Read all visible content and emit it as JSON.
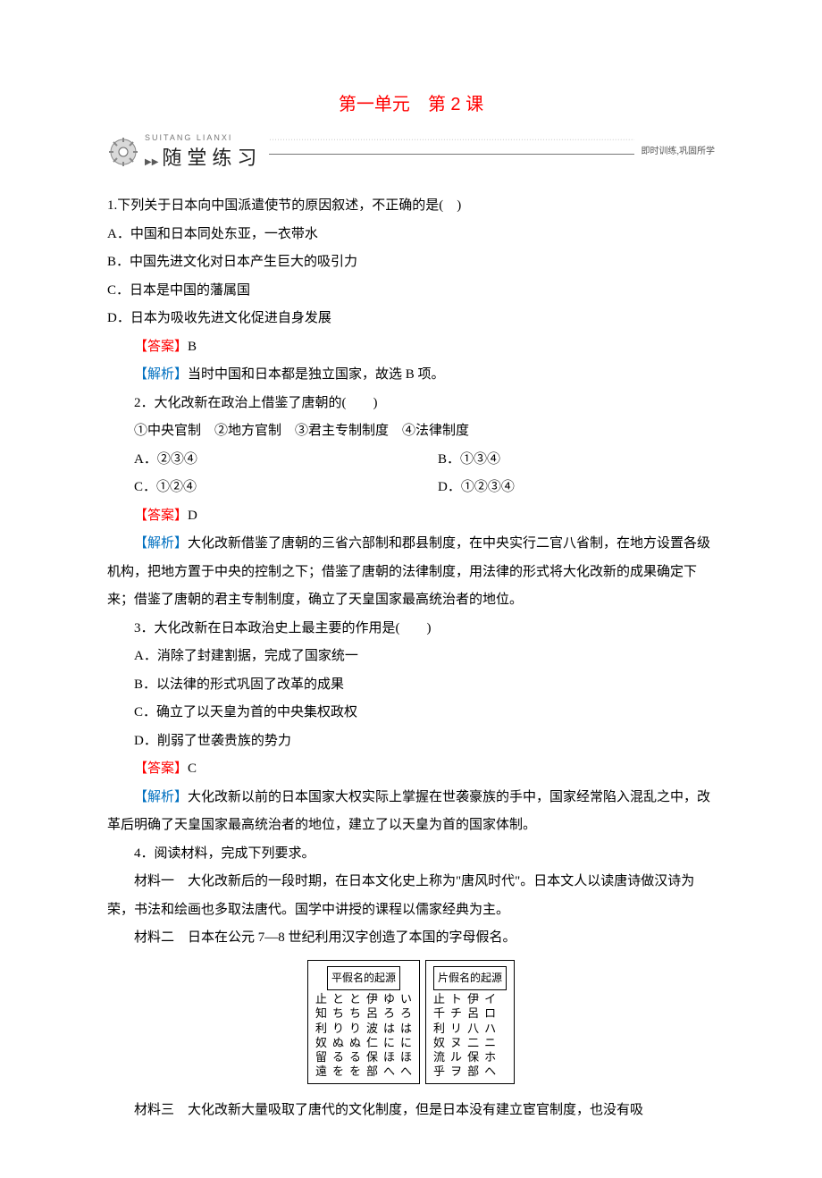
{
  "title": "第一单元　第 2 课",
  "banner": {
    "pinyin": "SUITANG LIANXI",
    "cn": "随堂练习",
    "sub": "即时训练,巩固所学"
  },
  "q1": {
    "stem": "1.下列关于日本向中国派遣使节的原因叙述，不正确的是(　)",
    "a": "A．中国和日本同处东亚，一衣带水",
    "b": "B．中国先进文化对日本产生巨大的吸引力",
    "c": "C．日本是中国的藩属国",
    "d": "D．日本为吸收先进文化促进自身发展",
    "ans_label": "【答案】",
    "ans": "B",
    "ana_label": "【解析】",
    "ana": "当时中国和日本都是独立国家，故选 B 项。"
  },
  "q2": {
    "stem": "2．大化改新在政治上借鉴了唐朝的(　　)",
    "items": "①中央官制　②地方官制　③君主专制制度　④法律制度",
    "a": "A．②③④",
    "b": "B．①③④",
    "c": "C．①②④",
    "d": "D．①②③④",
    "ans_label": "【答案】",
    "ans": "D",
    "ana_label": "【解析】",
    "ana": "大化改新借鉴了唐朝的三省六部制和郡县制度，在中央实行二官八省制，在地方设置各级机构，把地方置于中央的控制之下；借鉴了唐朝的法律制度，用法律的形式将大化改新的成果确定下来；借鉴了唐朝的君主专制制度，确立了天皇国家最高统治者的地位。"
  },
  "q3": {
    "stem": "3．大化改新在日本政治史上最主要的作用是(　　)",
    "a": "A．消除了封建割据，完成了国家统一",
    "b": "B．以法律的形式巩固了改革的成果",
    "c": "C．确立了以天皇为首的中央集权政权",
    "d": "D．削弱了世袭贵族的势力",
    "ans_label": "【答案】",
    "ans": "C",
    "ana_label": "【解析】",
    "ana": "大化改新以前的日本国家大权实际上掌握在世袭豪族的手中，国家经常陷入混乱之中，改革后明确了天皇国家最高统治者的地位，建立了以天皇为首的国家体制。"
  },
  "q4": {
    "stem": "4．阅读材料，完成下列要求。",
    "m1": "材料一　大化改新后的一段时期，在日本文化史上称为\"唐风时代\"。日本文人以读唐诗做汉诗为荣，书法和绘画也多取法唐代。国学中讲授的课程以儒家经典为主。",
    "m2": "材料二　日本在公元 7—8 世纪利用汉字创造了本国的字母假名。",
    "kana": {
      "h_title": "平假名的起源",
      "k_title": "片假名的起源",
      "h_cols": [
        [
          "止",
          "知",
          "利",
          "奴",
          "留",
          "遠"
        ],
        [
          "と",
          "ち",
          "り",
          "ぬ",
          "る",
          "を"
        ],
        [
          "と",
          "ち",
          "り",
          "ぬ",
          "る",
          "を"
        ],
        [
          "伊",
          "呂",
          "波",
          "仁",
          "保",
          "部"
        ],
        [
          "ゆ",
          "ろ",
          "は",
          "に",
          "ほ",
          "へ"
        ],
        [
          "い",
          "ろ",
          "は",
          "に",
          "ほ",
          "へ"
        ]
      ],
      "k_cols": [
        [
          "止",
          "千",
          "利",
          "奴",
          "流",
          "乎"
        ],
        [
          "ト",
          "チ",
          "リ",
          "ヌ",
          "ル",
          "ヲ"
        ],
        [
          "伊",
          "呂",
          "八",
          "二",
          "保",
          "部"
        ],
        [
          "イ",
          "ロ",
          "ハ",
          "ニ",
          "ホ",
          "ヘ"
        ]
      ]
    },
    "m3": "材料三　大化改新大量吸取了唐代的文化制度，但是日本没有建立宦官制度，也没有吸"
  },
  "colors": {
    "title": "#ff0000",
    "answer": "#ff0000",
    "analysis": "#0070c0",
    "text": "#000000",
    "background": "#ffffff"
  }
}
